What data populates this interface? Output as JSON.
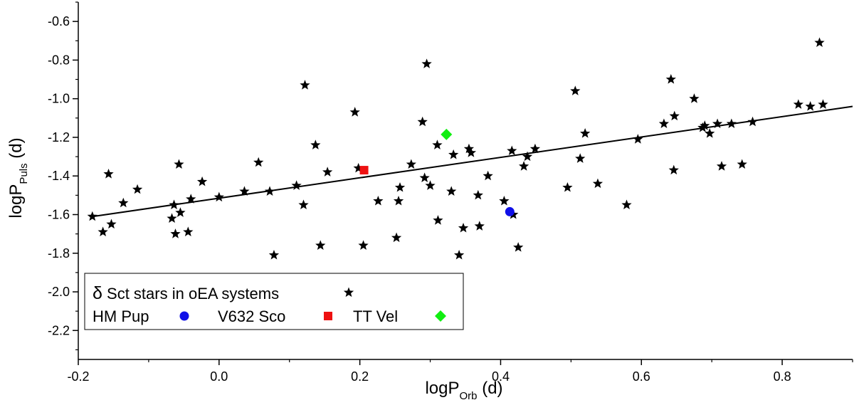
{
  "chart_data": {
    "type": "scatter",
    "title": "",
    "xlabel": {
      "main": "logP",
      "sub": "Orb",
      "unit": " (d)"
    },
    "ylabel": {
      "main": "logP",
      "sub": "Puls",
      "unit": " (d)"
    },
    "xlim": [
      -0.2,
      0.9
    ],
    "ylim": [
      -2.35,
      -0.5
    ],
    "x_ticks": [
      -0.2,
      0.0,
      0.2,
      0.4,
      0.6,
      0.8
    ],
    "x_tick_labels": [
      "-0.2",
      "0.0",
      "0.2",
      "0.4",
      "0.6",
      "0.8"
    ],
    "y_ticks": [
      -0.6,
      -0.8,
      -1.0,
      -1.2,
      -1.4,
      -1.6,
      -1.8,
      -2.0,
      -2.2
    ],
    "y_tick_labels": [
      "-0.6",
      "-0.8",
      "-1.0",
      "-1.2",
      "-1.4",
      "-1.6",
      "-1.8",
      "-2.0",
      "-2.2"
    ],
    "grid": false,
    "legend_position": "bottom-left",
    "fit_line": {
      "x": [
        -0.18,
        0.9
      ],
      "y": [
        -1.61,
        -1.04
      ]
    },
    "series": [
      {
        "name": "δ Sct stars in oEA systems",
        "legend_symbol": "δ",
        "legend_rest": " Sct stars in oEA systems",
        "marker": "star",
        "color": "#000000",
        "points": [
          [
            -0.18,
            -1.61
          ],
          [
            -0.165,
            -1.69
          ],
          [
            -0.157,
            -1.39
          ],
          [
            -0.153,
            -1.65
          ],
          [
            -0.136,
            -1.54
          ],
          [
            -0.116,
            -1.47
          ],
          [
            -0.067,
            -1.62
          ],
          [
            -0.064,
            -1.55
          ],
          [
            -0.062,
            -1.7
          ],
          [
            -0.057,
            -1.34
          ],
          [
            -0.055,
            -1.59
          ],
          [
            -0.044,
            -1.69
          ],
          [
            -0.04,
            -1.52
          ],
          [
            -0.024,
            -1.43
          ],
          [
            0.0,
            -1.51
          ],
          [
            0.036,
            -1.48
          ],
          [
            0.056,
            -1.33
          ],
          [
            0.072,
            -1.48
          ],
          [
            0.078,
            -1.81
          ],
          [
            0.11,
            -1.45
          ],
          [
            0.12,
            -1.55
          ],
          [
            0.122,
            -0.93
          ],
          [
            0.137,
            -1.24
          ],
          [
            0.144,
            -1.76
          ],
          [
            0.154,
            -1.38
          ],
          [
            0.193,
            -1.07
          ],
          [
            0.198,
            -1.36
          ],
          [
            0.205,
            -1.76
          ],
          [
            0.226,
            -1.53
          ],
          [
            0.252,
            -1.72
          ],
          [
            0.255,
            -1.53
          ],
          [
            0.257,
            -1.46
          ],
          [
            0.273,
            -1.34
          ],
          [
            0.289,
            -1.12
          ],
          [
            0.292,
            -1.41
          ],
          [
            0.295,
            -0.82
          ],
          [
            0.3,
            -1.45
          ],
          [
            0.31,
            -1.24
          ],
          [
            0.311,
            -1.63
          ],
          [
            0.33,
            -1.48
          ],
          [
            0.333,
            -1.29
          ],
          [
            0.341,
            -1.81
          ],
          [
            0.347,
            -1.67
          ],
          [
            0.355,
            -1.26
          ],
          [
            0.358,
            -1.28
          ],
          [
            0.368,
            -1.5
          ],
          [
            0.37,
            -1.66
          ],
          [
            0.382,
            -1.4
          ],
          [
            0.405,
            -1.53
          ],
          [
            0.416,
            -1.27
          ],
          [
            0.418,
            -1.6
          ],
          [
            0.425,
            -1.77
          ],
          [
            0.433,
            -1.35
          ],
          [
            0.438,
            -1.3
          ],
          [
            0.449,
            -1.26
          ],
          [
            0.495,
            -1.46
          ],
          [
            0.506,
            -0.96
          ],
          [
            0.513,
            -1.31
          ],
          [
            0.52,
            -1.18
          ],
          [
            0.538,
            -1.44
          ],
          [
            0.579,
            -1.55
          ],
          [
            0.595,
            -1.21
          ],
          [
            0.632,
            -1.13
          ],
          [
            0.642,
            -0.9
          ],
          [
            0.646,
            -1.37
          ],
          [
            0.647,
            -1.09
          ],
          [
            0.675,
            -1.0
          ],
          [
            0.687,
            -1.15
          ],
          [
            0.69,
            -1.14
          ],
          [
            0.697,
            -1.18
          ],
          [
            0.708,
            -1.13
          ],
          [
            0.714,
            -1.35
          ],
          [
            0.728,
            -1.13
          ],
          [
            0.743,
            -1.34
          ],
          [
            0.758,
            -1.12
          ],
          [
            0.823,
            -1.03
          ],
          [
            0.84,
            -1.04
          ],
          [
            0.853,
            -0.71
          ],
          [
            0.858,
            -1.03
          ]
        ]
      },
      {
        "name": "HM Pup",
        "marker": "circle",
        "color": "#1010e8",
        "points": [
          [
            0.413,
            -1.585
          ]
        ]
      },
      {
        "name": "V632 Sco",
        "marker": "square",
        "color": "#ee1111",
        "points": [
          [
            0.206,
            -1.37
          ]
        ]
      },
      {
        "name": "TT Vel",
        "marker": "diamond",
        "color": "#11ee11",
        "points": [
          [
            0.323,
            -1.185
          ]
        ]
      }
    ]
  }
}
